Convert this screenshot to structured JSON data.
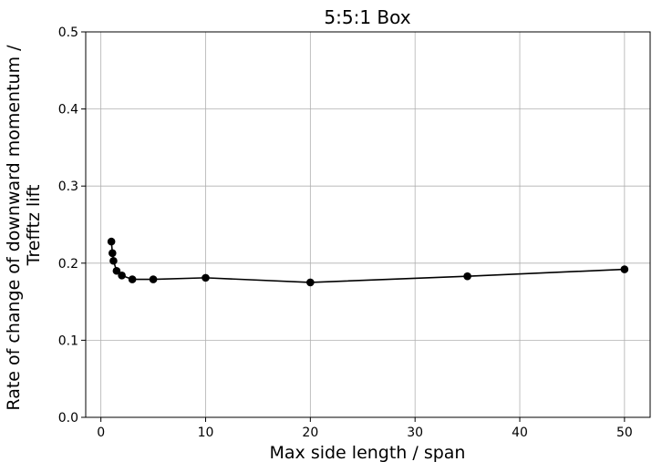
{
  "chart_data": {
    "type": "line",
    "title": "5:5:1 Box",
    "xlabel": "Max side length / span",
    "ylabel_lines": [
      "Rate of change of downward momentum /",
      "Trefftz lift"
    ],
    "xlim": [
      -1.45,
      52.45
    ],
    "ylim": [
      0.0,
      0.5
    ],
    "xticks": [
      0,
      10,
      20,
      30,
      40,
      50
    ],
    "yticks": [
      0.0,
      0.1,
      0.2,
      0.3,
      0.4,
      0.5
    ],
    "xtick_labels": [
      "0",
      "10",
      "20",
      "30",
      "40",
      "50"
    ],
    "ytick_labels": [
      "0.0",
      "0.1",
      "0.2",
      "0.3",
      "0.4",
      "0.5"
    ],
    "grid": true,
    "series": [
      {
        "color": "#000000",
        "marker": "circle",
        "x": [
          1.0,
          1.1,
          1.2,
          1.5,
          2.0,
          3.0,
          5.0,
          10.0,
          20.0,
          35.0,
          50.0
        ],
        "y": [
          0.228,
          0.213,
          0.203,
          0.19,
          0.184,
          0.179,
          0.179,
          0.181,
          0.175,
          0.183,
          0.192
        ]
      }
    ]
  }
}
